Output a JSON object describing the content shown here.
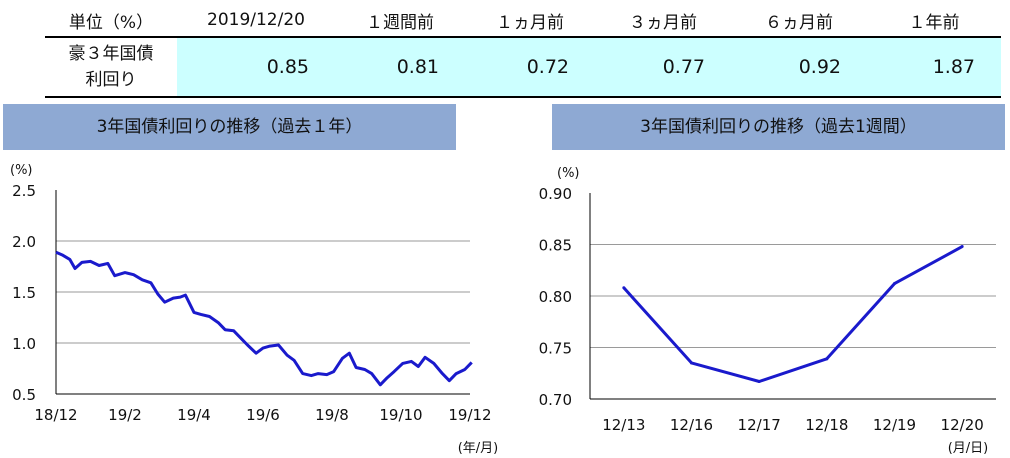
{
  "summary": {
    "header": [
      "単位（%）",
      "2019/12/20",
      "１週間前",
      "１ヵ月前",
      "３ヵ月前",
      "６ヵ月前",
      "１年前"
    ],
    "row_label_line1": "豪３年国債",
    "row_label_line2": "利回り",
    "values": [
      "0.85",
      "0.81",
      "0.72",
      "0.77",
      "0.92",
      "1.87"
    ]
  },
  "chart_data": [
    {
      "type": "line",
      "title": "3年国債利回りの推移（過去１年）",
      "yunit": "(%)",
      "xunit": "(年/月)",
      "ylim": [
        0.5,
        2.5
      ],
      "yticks": [
        "2.5",
        "2.0",
        "1.5",
        "1.0",
        "0.5"
      ],
      "categories": [
        "18/12",
        "19/2",
        "19/4",
        "19/6",
        "19/8",
        "19/10",
        "19/12"
      ],
      "x": [
        0,
        0.2,
        0.4,
        0.55,
        0.75,
        1.0,
        1.25,
        1.5,
        1.7,
        2.0,
        2.25,
        2.5,
        2.75,
        2.95,
        3.15,
        3.4,
        3.6,
        3.75,
        4.0,
        4.2,
        4.45,
        4.7,
        4.9,
        5.15,
        5.35,
        5.55,
        5.8,
        6.0,
        6.2,
        6.45,
        6.7,
        6.9,
        7.15,
        7.4,
        7.6,
        7.85,
        8.05,
        8.3,
        8.5,
        8.7,
        8.95,
        9.15,
        9.4,
        9.6,
        9.8,
        10.05,
        10.3,
        10.5,
        10.7,
        10.95,
        11.2,
        11.4,
        11.6,
        11.85,
        12.05
      ],
      "y": [
        1.89,
        1.86,
        1.82,
        1.73,
        1.79,
        1.8,
        1.76,
        1.78,
        1.66,
        1.69,
        1.67,
        1.62,
        1.59,
        1.48,
        1.4,
        1.44,
        1.45,
        1.47,
        1.3,
        1.28,
        1.26,
        1.2,
        1.13,
        1.12,
        1.05,
        0.98,
        0.9,
        0.95,
        0.97,
        0.98,
        0.88,
        0.83,
        0.7,
        0.68,
        0.7,
        0.69,
        0.72,
        0.85,
        0.9,
        0.76,
        0.74,
        0.7,
        0.59,
        0.66,
        0.72,
        0.8,
        0.82,
        0.77,
        0.86,
        0.8,
        0.7,
        0.63,
        0.7,
        0.74,
        0.81
      ]
    },
    {
      "type": "line",
      "title": "3年国債利回りの推移（過去1週間）",
      "yunit": "(%)",
      "xunit": "(月/日)",
      "ylim": [
        0.7,
        0.9
      ],
      "yticks": [
        "0.90",
        "0.85",
        "0.80",
        "0.75",
        "0.70"
      ],
      "categories": [
        "12/13",
        "12/16",
        "12/17",
        "12/18",
        "12/19",
        "12/20"
      ],
      "values": [
        0.808,
        0.735,
        0.717,
        0.739,
        0.812,
        0.848
      ]
    }
  ],
  "colors": {
    "series": "#1a1acc",
    "panel_title_bg": "#8ea9d3",
    "table_value_bg": "#ccffff"
  }
}
